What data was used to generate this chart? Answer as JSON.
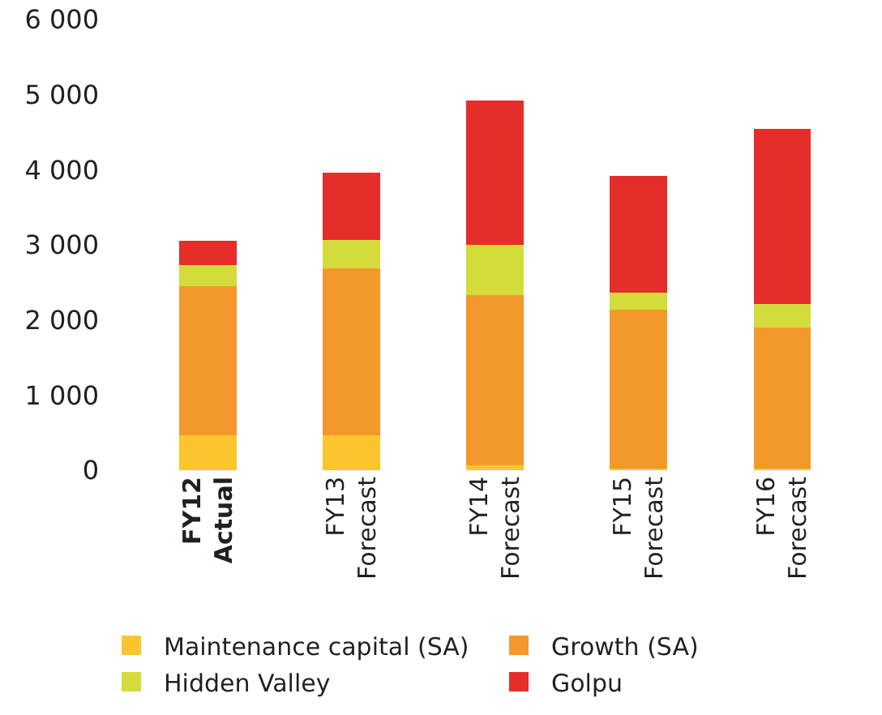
{
  "chart_data": {
    "type": "bar",
    "stacked": true,
    "categories": [
      "FY12\nActual",
      "FY13\nForecast",
      "FY14\nForecast",
      "FY15\nForecast",
      "FY16\nForecast"
    ],
    "series": [
      {
        "name": "Maintenance capital (SA)",
        "color": "#fcc530",
        "values": [
          460,
          460,
          70,
          20,
          20
        ]
      },
      {
        "name": "Growth (SA)",
        "color": "#f3992c",
        "values": [
          1990,
          2230,
          2260,
          2120,
          1880
        ]
      },
      {
        "name": "Hidden Valley",
        "color": "#d4dc3b",
        "values": [
          280,
          380,
          670,
          220,
          310
        ]
      },
      {
        "name": "Golpu",
        "color": "#e52d29",
        "values": [
          320,
          890,
          1920,
          1560,
          2330
        ]
      }
    ],
    "ylim": [
      0,
      6000
    ],
    "yticks": [
      0,
      {
        "value": 1000,
        "label": "1 000"
      },
      {
        "value": 2000,
        "label": "2 000"
      },
      {
        "value": 3000,
        "label": "3 000"
      },
      {
        "value": 4000,
        "label": "4 000"
      },
      {
        "value": 5000,
        "label": "5 000"
      },
      {
        "value": 6000,
        "label": "6 000"
      }
    ],
    "legend": "bottom"
  }
}
